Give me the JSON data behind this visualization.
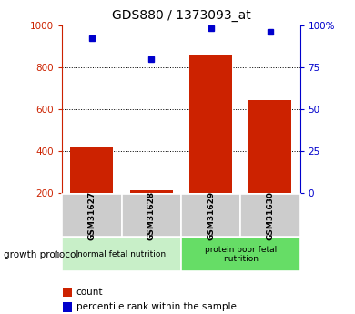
{
  "title": "GDS880 / 1373093_at",
  "samples": [
    "GSM31627",
    "GSM31628",
    "GSM31629",
    "GSM31630"
  ],
  "counts": [
    420,
    215,
    860,
    645
  ],
  "percentile_ranks": [
    92,
    80,
    98,
    96
  ],
  "groups": [
    {
      "label": "normal fetal nutrition",
      "color": "#c8efc8",
      "span": [
        0,
        1
      ]
    },
    {
      "label": "protein poor fetal\nnutrition",
      "color": "#66dd66",
      "span": [
        2,
        3
      ]
    }
  ],
  "left_ylim": [
    200,
    1000
  ],
  "left_ticks": [
    200,
    400,
    600,
    800,
    1000
  ],
  "right_ylim": [
    0,
    100
  ],
  "right_ticks": [
    0,
    25,
    50,
    75,
    100
  ],
  "right_tick_labels": [
    "0",
    "25",
    "50",
    "75",
    "100%"
  ],
  "bar_color": "#cc2200",
  "dot_color": "#0000cc",
  "sample_box_color": "#cccccc",
  "bg_color": "#ffffff",
  "annotation_text": "growth protocol",
  "legend_count_label": "count",
  "legend_pct_label": "percentile rank within the sample"
}
